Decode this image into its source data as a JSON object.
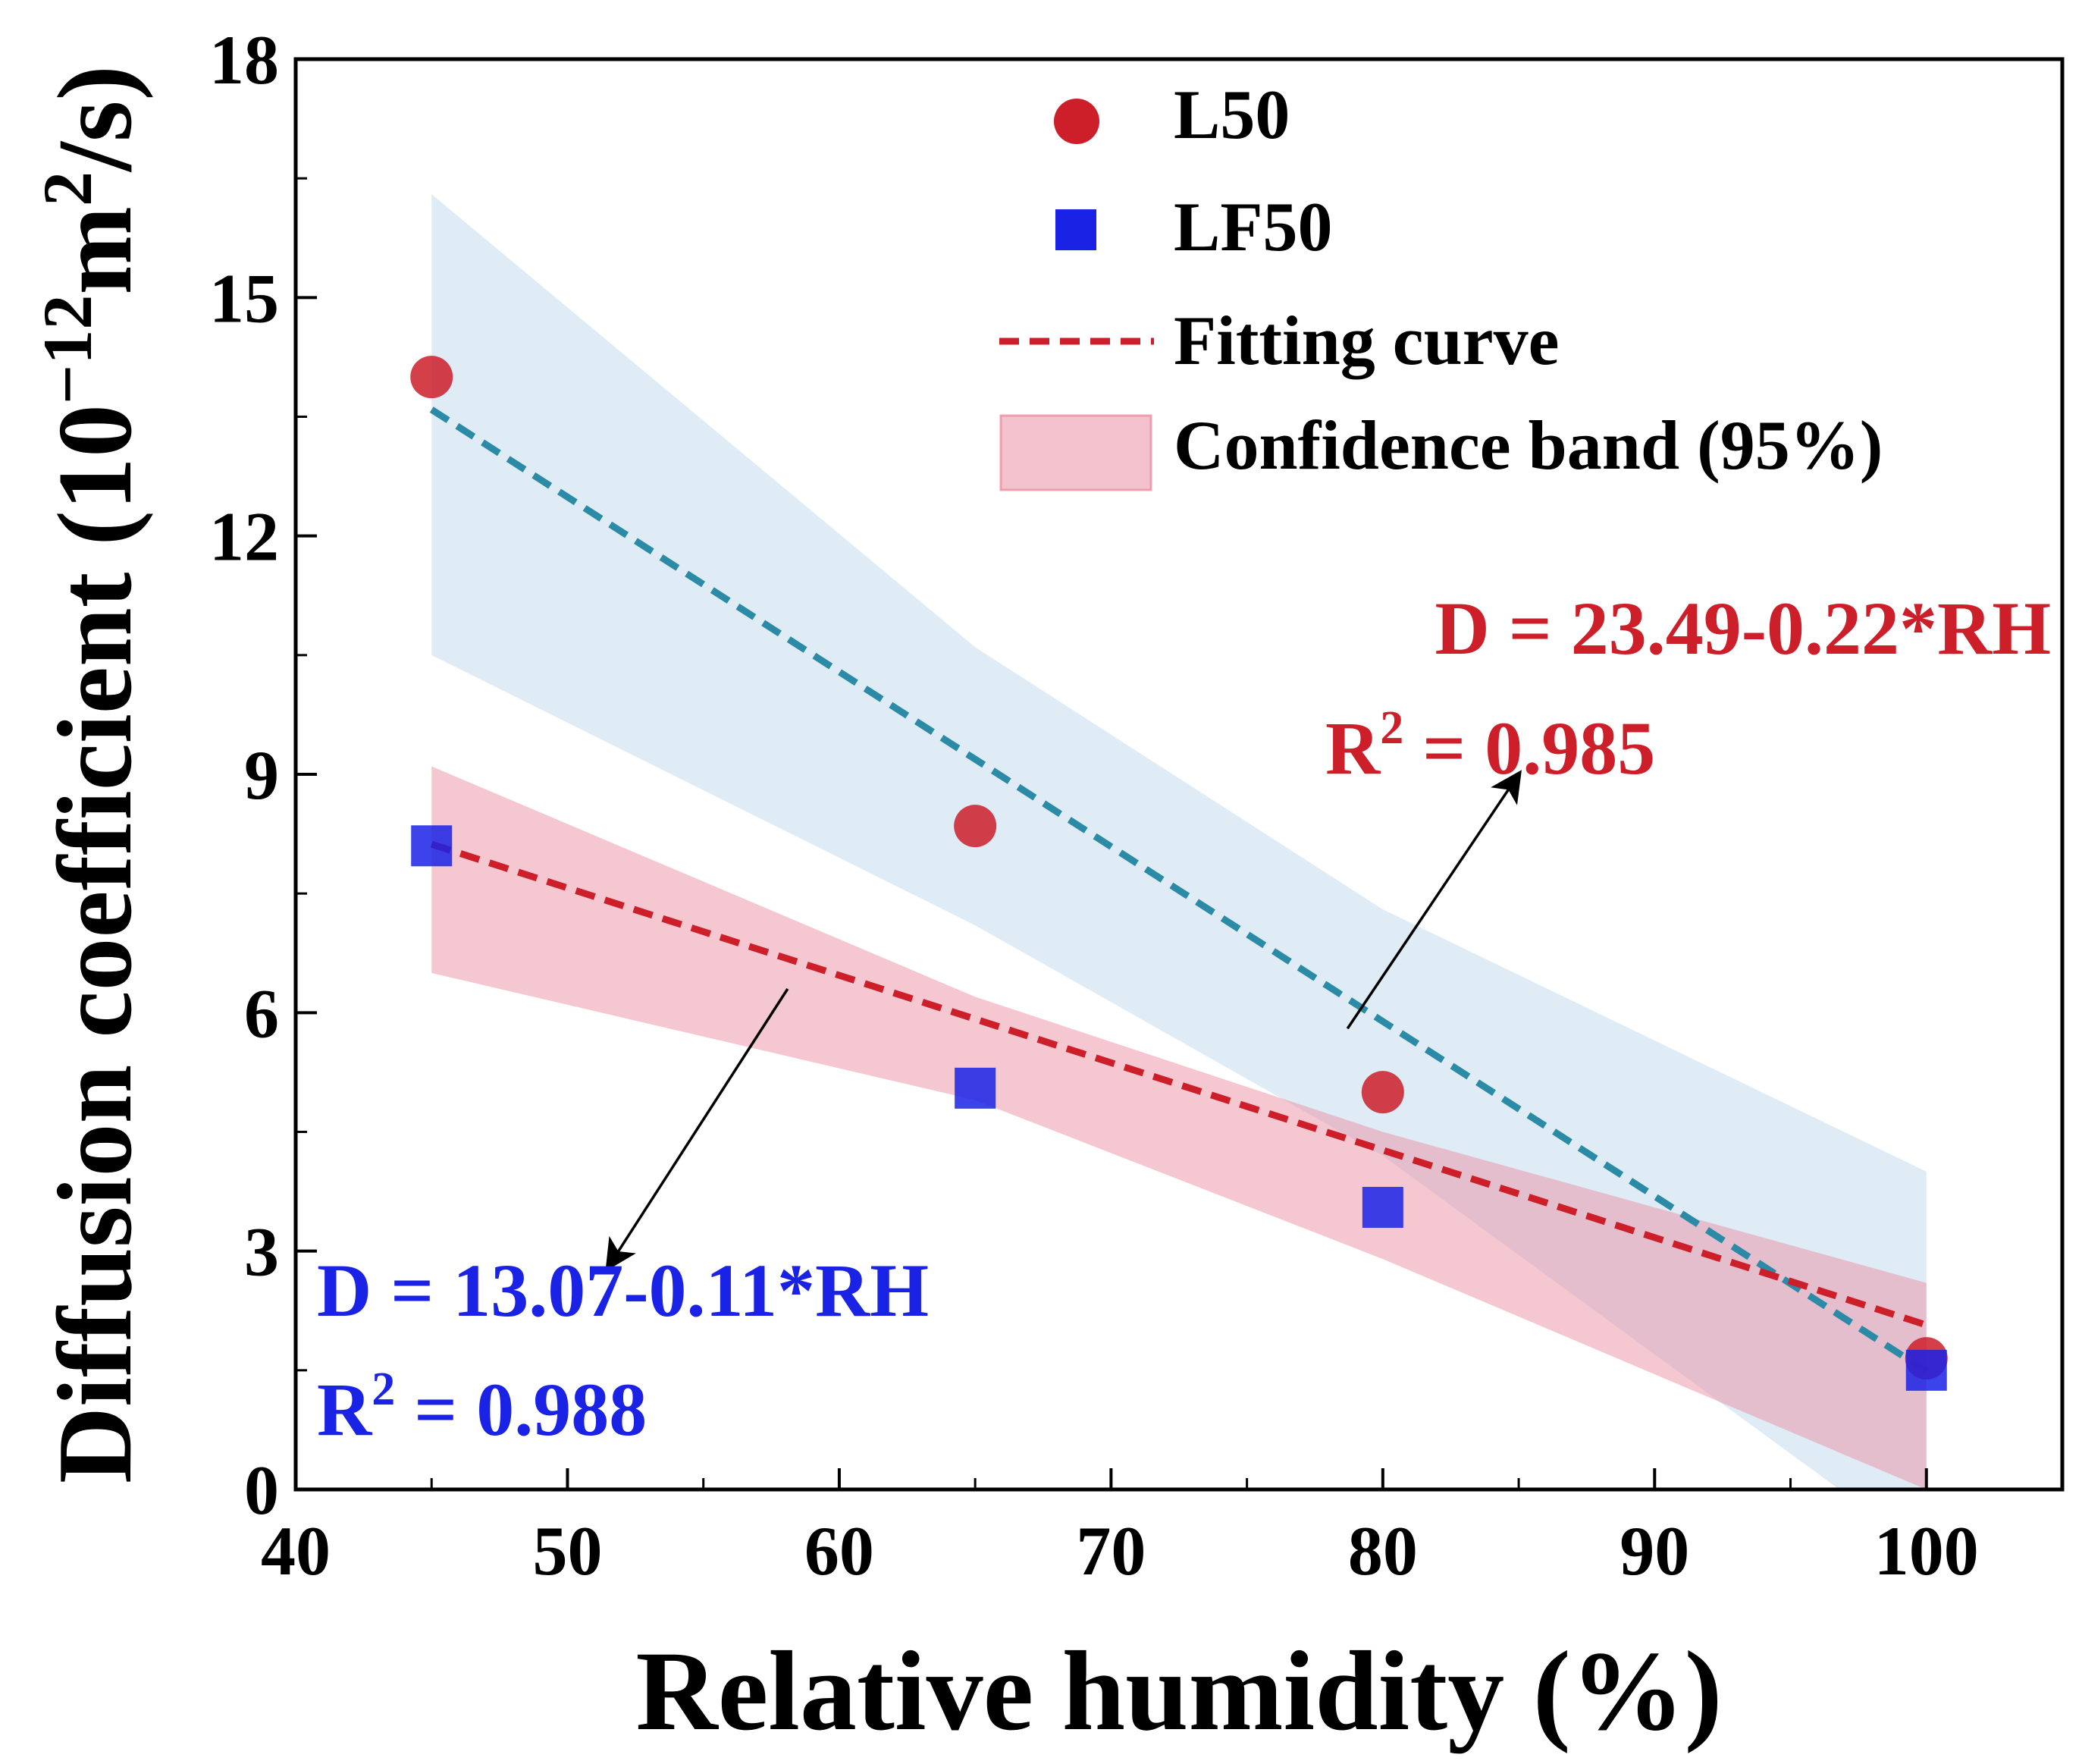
{
  "chart_data": {
    "type": "scatter",
    "xlabel": "Relative humidity (%)",
    "ylabel": {
      "prefix": "Diffusion coefficient (10",
      "exponent": "−12",
      "middle": "m",
      "exponent2": "2",
      "suffix": "/s)"
    },
    "xlim": [
      40,
      105
    ],
    "ylim": [
      0,
      18
    ],
    "x_ticks": [
      40,
      50,
      60,
      70,
      80,
      90,
      100
    ],
    "y_ticks": [
      0,
      3,
      6,
      9,
      12,
      15,
      18
    ],
    "x_tick_labels": [
      "40",
      "50",
      "60",
      "70",
      "80",
      "90",
      "100"
    ],
    "y_tick_labels": [
      "0",
      "3",
      "6",
      "9",
      "12",
      "15",
      "18"
    ],
    "series": [
      {
        "name": "L50",
        "marker": "circle",
        "color": "#cc1f2a",
        "x": [
          45,
          65,
          80,
          100
        ],
        "y": [
          14.0,
          8.35,
          5.0,
          1.65
        ],
        "fit": {
          "intercept": 23.49,
          "slope": -0.22,
          "line_color": "#2b8aa6",
          "x_range": [
            45,
            100
          ]
        },
        "band": {
          "color": "#c5dcef",
          "x": [
            45,
            65,
            80,
            100
          ],
          "upper": [
            16.3,
            10.6,
            7.3,
            4.0
          ],
          "lower": [
            10.5,
            7.1,
            4.2,
            -0.8
          ]
        }
      },
      {
        "name": "LF50",
        "marker": "square",
        "color": "#1a22e6",
        "x": [
          45,
          65,
          80,
          100
        ],
        "y": [
          8.1,
          5.05,
          3.55,
          1.5
        ],
        "fit": {
          "intercept": 13.07,
          "slope": -0.11,
          "line_color": "#cc1f2a",
          "x_range": [
            45,
            100
          ]
        },
        "band": {
          "color": "#eb8fa3",
          "x": [
            45,
            65,
            80,
            100
          ],
          "upper": [
            9.1,
            6.2,
            4.5,
            2.6
          ],
          "lower": [
            6.5,
            4.9,
            2.9,
            0.0
          ]
        }
      }
    ],
    "legend": {
      "position": "top-right",
      "entries": [
        "L50",
        "LF50",
        "Fitting curve",
        "Confidence band (95%)"
      ]
    },
    "annotations": [
      {
        "name": "l50-equation",
        "color": "#cc1f2a",
        "equation": "D  = 23.49-0.22*RH",
        "r2_prefix": "R",
        "r2_exponent": "2",
        "r2_value": " = 0.985",
        "arrow_from": [
          78.7,
          5.8
        ],
        "arrow_to": [
          85,
          9.0
        ]
      },
      {
        "name": "lf50-equation",
        "color": "#1a22e6",
        "equation": "D  = 13.07-0.11*RH",
        "r2_prefix": "R",
        "r2_exponent": "2",
        "r2_value": " = 0.988",
        "arrow_from": [
          58.1,
          6.3
        ],
        "arrow_to": [
          51.5,
          2.8
        ]
      }
    ]
  }
}
